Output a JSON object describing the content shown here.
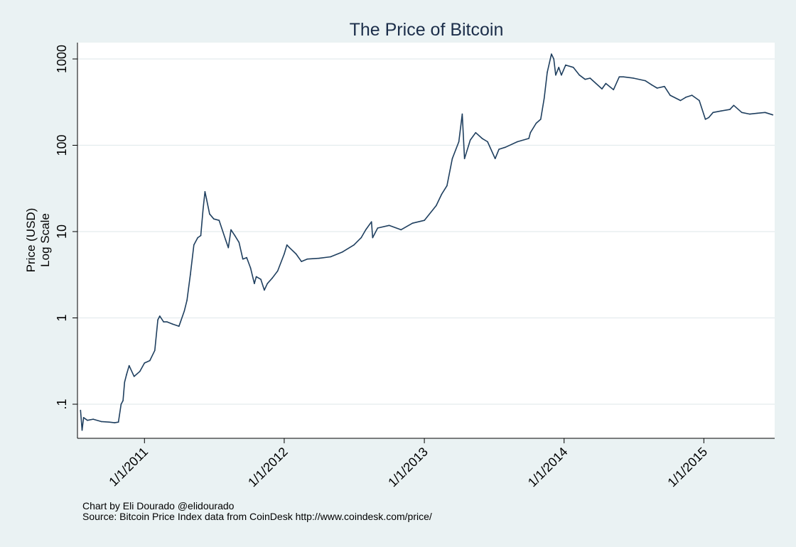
{
  "chart_data": {
    "type": "line",
    "title": "The Price of Bitcoin",
    "ylabel_line1": "Price (USD)",
    "ylabel_line2": "Log Scale",
    "xlabel": "",
    "yscale": "log",
    "ylim": [
      0.05,
      1300
    ],
    "y_ticks": [
      {
        "value": 0.1,
        "label": ".1"
      },
      {
        "value": 1,
        "label": "1"
      },
      {
        "value": 10,
        "label": "10"
      },
      {
        "value": 100,
        "label": "100"
      },
      {
        "value": 1000,
        "label": "1000"
      }
    ],
    "x_ticks": [
      "2011-01-01",
      "2012-01-01",
      "2013-01-01",
      "2014-01-01",
      "2015-01-01"
    ],
    "x_tick_labels": [
      "1/1/2011",
      "1/1/2012",
      "1/1/2013",
      "1/1/2014",
      "1/1/2015"
    ],
    "xlim": [
      "2010-07-10",
      "2015-07-05"
    ],
    "grid": true,
    "legend": "none",
    "colors": {
      "background": "#eaf2f3",
      "plot_area": "#ffffff",
      "line": "#1f3f5f",
      "title": "#1c2e4a",
      "grid": "#e3ecee"
    },
    "series": [
      {
        "x": [
          "2010-07-18",
          "2010-07-22",
          "2010-07-26",
          "2010-08-05",
          "2010-08-20",
          "2010-09-10",
          "2010-10-01",
          "2010-10-15",
          "2010-10-25",
          "2010-11-01",
          "2010-11-06",
          "2010-11-10",
          "2010-11-15",
          "2010-11-22",
          "2010-12-05",
          "2010-12-20",
          "2011-01-01",
          "2011-01-15",
          "2011-01-28",
          "2011-02-05",
          "2011-02-10",
          "2011-02-20",
          "2011-03-01",
          "2011-03-15",
          "2011-04-01",
          "2011-04-15",
          "2011-04-22",
          "2011-05-01",
          "2011-05-10",
          "2011-05-20",
          "2011-05-28",
          "2011-06-03",
          "2011-06-08",
          "2011-06-12",
          "2011-06-20",
          "2011-07-01",
          "2011-07-15",
          "2011-08-01",
          "2011-08-08",
          "2011-08-15",
          "2011-08-25",
          "2011-09-05",
          "2011-09-15",
          "2011-09-25",
          "2011-10-05",
          "2011-10-15",
          "2011-10-20",
          "2011-11-01",
          "2011-11-10",
          "2011-11-18",
          "2011-12-01",
          "2011-12-15",
          "2012-01-01",
          "2012-01-08",
          "2012-01-15",
          "2012-02-01",
          "2012-02-15",
          "2012-03-01",
          "2012-04-01",
          "2012-05-01",
          "2012-06-01",
          "2012-07-01",
          "2012-07-20",
          "2012-08-01",
          "2012-08-16",
          "2012-08-19",
          "2012-09-01",
          "2012-10-01",
          "2012-11-01",
          "2012-12-01",
          "2013-01-01",
          "2013-02-01",
          "2013-02-15",
          "2013-03-01",
          "2013-03-15",
          "2013-04-01",
          "2013-04-10",
          "2013-04-16",
          "2013-05-01",
          "2013-05-15",
          "2013-06-01",
          "2013-06-15",
          "2013-07-05",
          "2013-07-15",
          "2013-08-01",
          "2013-09-01",
          "2013-10-01",
          "2013-10-05",
          "2013-10-20",
          "2013-11-01",
          "2013-11-10",
          "2013-11-18",
          "2013-11-29",
          "2013-12-05",
          "2013-12-10",
          "2013-12-18",
          "2013-12-25",
          "2014-01-05",
          "2014-01-25",
          "2014-02-10",
          "2014-02-25",
          "2014-03-10",
          "2014-04-10",
          "2014-04-20",
          "2014-05-10",
          "2014-05-25",
          "2014-06-05",
          "2014-07-01",
          "2014-08-01",
          "2014-08-18",
          "2014-09-01",
          "2014-09-20",
          "2014-10-05",
          "2014-11-01",
          "2014-11-15",
          "2014-12-01",
          "2014-12-20",
          "2015-01-05",
          "2015-01-14",
          "2015-01-25",
          "2015-02-15",
          "2015-03-10",
          "2015-03-20",
          "2015-04-10",
          "2015-05-01",
          "2015-05-20",
          "2015-06-10",
          "2015-06-30"
        ],
        "y": [
          0.085,
          0.05,
          0.07,
          0.065,
          0.067,
          0.063,
          0.062,
          0.061,
          0.062,
          0.1,
          0.11,
          0.18,
          0.22,
          0.28,
          0.21,
          0.24,
          0.3,
          0.32,
          0.42,
          0.95,
          1.05,
          0.9,
          0.9,
          0.85,
          0.8,
          1.2,
          1.6,
          3.2,
          7.0,
          8.5,
          9.0,
          18,
          29,
          24,
          16,
          14,
          13.5,
          8.0,
          6.5,
          10.5,
          9.0,
          7.5,
          4.8,
          5.0,
          3.8,
          2.5,
          3.0,
          2.8,
          2.1,
          2.5,
          2.9,
          3.5,
          5.5,
          7.0,
          6.5,
          5.5,
          4.5,
          4.8,
          4.9,
          5.1,
          5.8,
          7.0,
          8.5,
          10.5,
          13.0,
          8.5,
          11.0,
          11.8,
          10.5,
          12.5,
          13.5,
          20,
          27,
          34,
          70,
          110,
          230,
          70,
          115,
          140,
          120,
          110,
          70,
          90,
          95,
          110,
          120,
          140,
          180,
          200,
          350,
          700,
          1140,
          1000,
          650,
          800,
          650,
          850,
          800,
          650,
          580,
          600,
          450,
          520,
          440,
          620,
          620,
          600,
          560,
          500,
          460,
          480,
          380,
          330,
          360,
          380,
          330,
          200,
          210,
          240,
          250,
          260,
          290,
          240,
          230,
          235,
          240,
          225
        ]
      }
    ],
    "footer_line1": "Chart by Eli Dourado @elidourado",
    "footer_line2": "Source: Bitcoin Price Index data from CoinDesk http://www.coindesk.com/price/"
  }
}
